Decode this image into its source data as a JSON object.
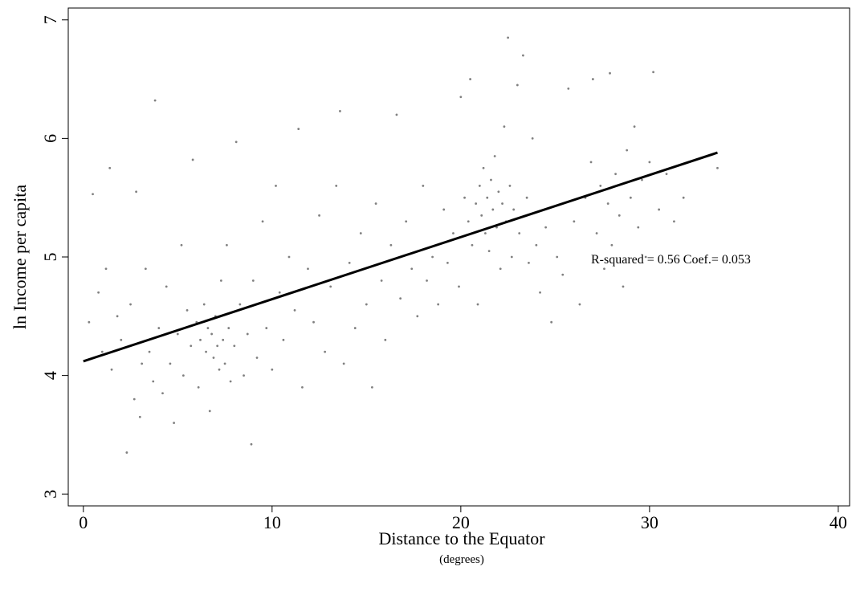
{
  "chart_data": {
    "type": "scatter",
    "x_label": "Distance to the Equator",
    "x_sublabel": "(degrees)",
    "y_label": "ln Income per capita",
    "annotation": "R-squared = 0.56 Coef.= 0.053",
    "xlim": [
      -0.8,
      40.6
    ],
    "ylim": [
      2.9,
      7.1
    ],
    "xticks": [
      0,
      10,
      20,
      30,
      40
    ],
    "yticks": [
      3,
      4,
      5,
      6,
      7
    ],
    "color": "#808080",
    "line_color": "#000000",
    "x": [
      0.3,
      0.5,
      0.8,
      1.0,
      1.2,
      1.4,
      1.5,
      1.8,
      2.0,
      2.3,
      2.5,
      2.7,
      2.8,
      3.0,
      3.1,
      3.3,
      3.5,
      3.7,
      3.8,
      4.0,
      4.2,
      4.4,
      4.6,
      4.8,
      5.0,
      5.2,
      5.3,
      5.5,
      5.7,
      5.8,
      6.0,
      6.1,
      6.2,
      6.4,
      6.5,
      6.6,
      6.7,
      6.8,
      6.9,
      7.0,
      7.1,
      7.2,
      7.3,
      7.4,
      7.5,
      7.6,
      7.7,
      7.8,
      8.0,
      8.1,
      8.3,
      8.5,
      8.7,
      8.9,
      9.0,
      9.2,
      9.5,
      9.7,
      10.0,
      10.2,
      10.4,
      10.6,
      10.9,
      11.2,
      11.4,
      11.6,
      11.9,
      12.2,
      12.5,
      12.8,
      13.1,
      13.4,
      13.6,
      13.8,
      14.1,
      14.4,
      14.7,
      15.0,
      15.3,
      15.5,
      15.8,
      16.0,
      16.3,
      16.6,
      16.8,
      17.1,
      17.4,
      17.7,
      18.0,
      18.2,
      18.5,
      18.8,
      19.1,
      19.3,
      19.6,
      19.9,
      20.0,
      20.2,
      20.4,
      20.5,
      20.6,
      20.8,
      20.9,
      21.0,
      21.1,
      21.2,
      21.3,
      21.4,
      21.5,
      21.6,
      21.7,
      21.8,
      21.9,
      22.0,
      22.1,
      22.2,
      22.3,
      22.4,
      22.5,
      22.6,
      22.7,
      22.8,
      23.0,
      23.1,
      23.3,
      23.5,
      23.6,
      23.8,
      24.0,
      24.2,
      24.5,
      24.8,
      25.1,
      25.4,
      25.7,
      26.0,
      26.3,
      26.6,
      26.9,
      27.0,
      27.2,
      27.4,
      27.6,
      27.8,
      27.9,
      28.0,
      28.2,
      28.4,
      28.6,
      28.8,
      29.0,
      29.2,
      29.4,
      29.6,
      29.8,
      30.0,
      30.2,
      30.5,
      30.9,
      31.3,
      31.8,
      33.6
    ],
    "y": [
      4.45,
      5.53,
      4.7,
      4.2,
      4.9,
      5.75,
      4.05,
      4.5,
      4.3,
      3.35,
      4.6,
      3.8,
      5.55,
      3.65,
      4.1,
      4.9,
      4.2,
      3.95,
      6.32,
      4.4,
      3.85,
      4.75,
      4.1,
      3.6,
      4.35,
      5.1,
      4.0,
      4.55,
      4.25,
      5.82,
      4.45,
      3.9,
      4.3,
      4.6,
      4.2,
      4.4,
      3.7,
      4.35,
      4.15,
      4.5,
      4.25,
      4.05,
      4.8,
      4.3,
      4.1,
      5.1,
      4.4,
      3.95,
      4.25,
      5.97,
      4.6,
      4.0,
      4.35,
      3.42,
      4.8,
      4.15,
      5.3,
      4.4,
      4.05,
      5.6,
      4.7,
      4.3,
      5.0,
      4.55,
      6.08,
      3.9,
      4.9,
      4.45,
      5.35,
      4.2,
      4.75,
      5.6,
      6.23,
      4.1,
      4.95,
      4.4,
      5.2,
      4.6,
      3.9,
      5.45,
      4.8,
      4.3,
      5.1,
      6.2,
      4.65,
      5.3,
      4.9,
      4.5,
      5.6,
      4.8,
      5.0,
      4.6,
      5.4,
      4.95,
      5.2,
      4.75,
      6.35,
      5.5,
      5.3,
      6.5,
      5.1,
      5.45,
      4.6,
      5.6,
      5.35,
      5.75,
      5.2,
      5.5,
      5.05,
      5.65,
      5.4,
      5.85,
      5.25,
      5.55,
      4.9,
      5.45,
      6.1,
      5.3,
      6.85,
      5.6,
      5.0,
      5.4,
      6.45,
      5.2,
      6.7,
      5.5,
      4.95,
      6.0,
      5.1,
      4.7,
      5.25,
      4.45,
      5.0,
      4.85,
      6.42,
      5.3,
      4.6,
      5.5,
      5.8,
      6.5,
      5.2,
      5.6,
      4.9,
      5.45,
      6.55,
      5.1,
      5.7,
      5.35,
      4.75,
      5.9,
      5.5,
      6.1,
      5.25,
      5.65,
      5.0,
      5.8,
      6.56,
      5.4,
      5.7,
      5.3,
      5.5,
      5.75
    ],
    "fit_line": {
      "x": [
        0,
        33.6
      ],
      "y": [
        4.12,
        5.88
      ]
    }
  }
}
